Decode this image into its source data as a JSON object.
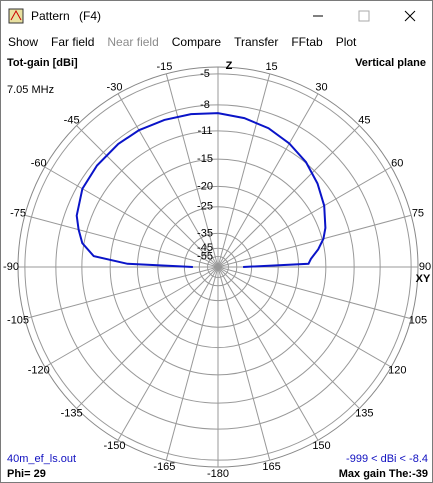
{
  "window": {
    "title": "Pattern",
    "shortcut": "(F4)"
  },
  "menu": [
    "Show",
    "Far field",
    "Near field",
    "Compare",
    "Transfer",
    "FFtab",
    "Plot"
  ],
  "plot": {
    "type": "polar",
    "y_label": "Tot-gain [dBi]",
    "plane": "Vertical plane",
    "frequency": "7.05 MHz",
    "zenith_label": "Z",
    "horizon_label": "XY",
    "file": "40m_ef_ls.out",
    "phi": "Phi= 29",
    "gain_range": "-999 < dBi < -8.4",
    "max_gain": "Max gain The:-39",
    "rmax": -4.4,
    "r_ticks": [
      -5,
      -8,
      -11,
      -15,
      -20,
      -25,
      -35,
      -45,
      -55
    ],
    "angle_ticks": [
      15,
      30,
      45,
      60,
      75,
      90,
      105,
      120,
      135,
      150,
      165,
      -180,
      -165,
      -150,
      -135,
      -120,
      -105,
      -90,
      -75,
      -60,
      -45,
      -30,
      -15
    ],
    "series": [
      {
        "color": "#0a14c8",
        "theta": [
          -90,
          -88,
          -85,
          -80,
          -75,
          -70,
          -60,
          -50,
          -39,
          -30,
          -20,
          -10,
          0,
          10,
          20,
          30,
          40,
          50,
          60,
          70,
          75,
          80,
          85,
          88,
          90
        ],
        "values": [
          -40,
          -18,
          -12.5,
          -10.8,
          -10,
          -9.3,
          -8.6,
          -8.45,
          -8.4,
          -8.45,
          -8.6,
          -8.75,
          -8.9,
          -9.2,
          -9.6,
          -10.2,
          -10.9,
          -11.8,
          -12.8,
          -14,
          -14.8,
          -16,
          -17.5,
          -18,
          -40
        ]
      }
    ]
  }
}
